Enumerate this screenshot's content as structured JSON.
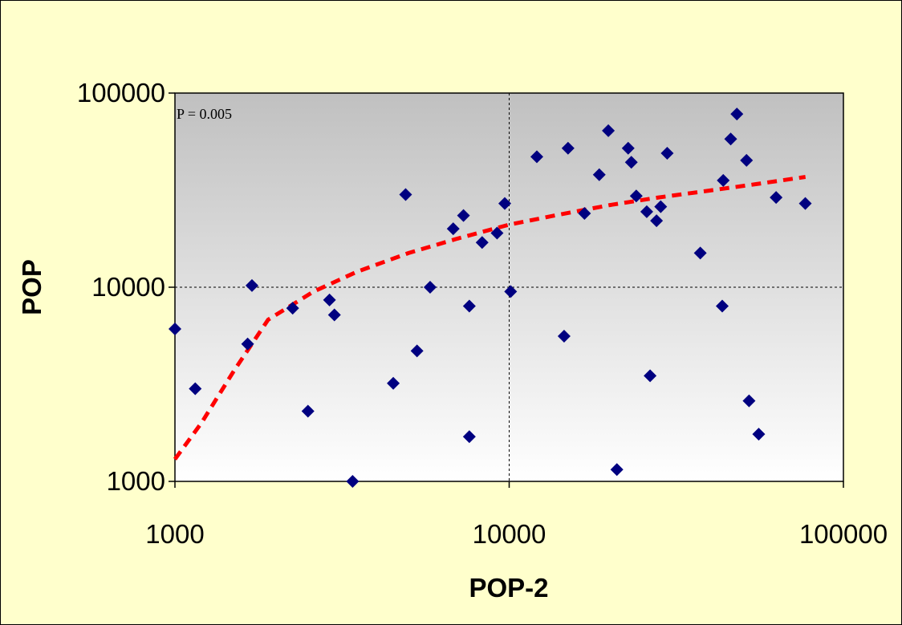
{
  "chart_data": {
    "type": "scatter",
    "title": "",
    "xlabel": "POP-2",
    "ylabel": "POP",
    "x_scale": "log",
    "y_scale": "log",
    "xlim": [
      1000,
      100000
    ],
    "ylim": [
      1000,
      100000
    ],
    "x_ticks": [
      "1000",
      "10000",
      "100000"
    ],
    "y_ticks": [
      "1000",
      "10000",
      "100000"
    ],
    "grid": "dashed major gridlines",
    "legend": "none",
    "annotation": "P = 0.005",
    "colors": {
      "background": "#ffffcc",
      "plot_top": "#c0c0c0",
      "plot_bottom": "#ffffff",
      "points": "#000080",
      "trend": "#ff0000"
    },
    "series": [
      {
        "kind": "points",
        "marker": "diamond",
        "x": [
          1000,
          1150,
          1650,
          1700,
          2250,
          2500,
          2900,
          3000,
          3400,
          4500,
          4900,
          5300,
          5800,
          6800,
          7300,
          7600,
          7600,
          8300,
          9200,
          9700,
          10100,
          12100,
          14600,
          15000,
          16800,
          18600,
          19800,
          21000,
          22700,
          23200,
          24000,
          25800,
          26400,
          27600,
          28400,
          29700,
          37300,
          43400,
          43700,
          46000,
          48000,
          51300,
          52200,
          55800,
          62900,
          76900
        ],
        "y": [
          6100,
          3000,
          5100,
          10200,
          7800,
          2300,
          8600,
          7200,
          1000,
          3200,
          30000,
          4700,
          10000,
          20000,
          23400,
          8000,
          1700,
          17000,
          19000,
          27000,
          9500,
          47000,
          5600,
          52000,
          24000,
          38000,
          64000,
          1150,
          52000,
          44000,
          29500,
          24500,
          3500,
          22000,
          26000,
          49000,
          15000,
          8000,
          35500,
          58000,
          78000,
          45000,
          2600,
          1750,
          29000,
          27000
        ]
      },
      {
        "kind": "trend",
        "style": "dashed",
        "x": [
          1000,
          1200,
          1500,
          1900,
          2600,
          3500,
          5000,
          7000,
          10000,
          14000,
          20000,
          28000,
          40000,
          55000,
          77000
        ],
        "y": [
          1300,
          2000,
          3700,
          6800,
          9500,
          12000,
          15000,
          17800,
          21000,
          23600,
          26500,
          29000,
          31500,
          34000,
          37000
        ]
      }
    ]
  }
}
